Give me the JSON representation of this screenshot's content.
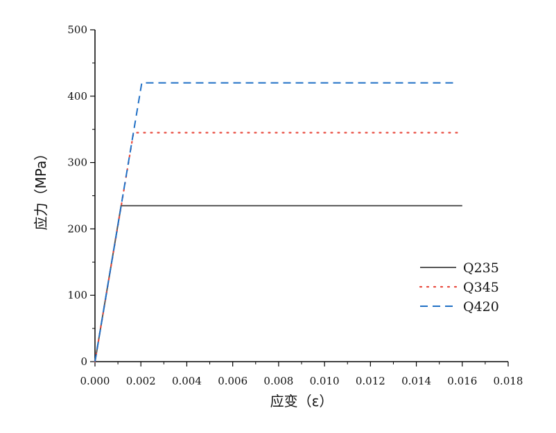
{
  "chart_data": {
    "type": "line",
    "title": "",
    "xlabel": "应变（ε）",
    "ylabel": "应力（MPa）",
    "xlim": [
      0,
      0.018
    ],
    "ylim": [
      0,
      500
    ],
    "x_ticks": [
      "0.000",
      "0.002",
      "0.004",
      "0.006",
      "0.008",
      "0.010",
      "0.012",
      "0.014",
      "0.016",
      "0.018"
    ],
    "y_ticks": [
      "0",
      "100",
      "200",
      "300",
      "400",
      "500"
    ],
    "grid": false,
    "legend_position": "right-middle",
    "series": [
      {
        "name": "Q235",
        "color": "#555555",
        "style": "solid",
        "points": [
          [
            0,
            0
          ],
          [
            0.00114,
            235
          ],
          [
            0.016,
            235
          ]
        ]
      },
      {
        "name": "Q345",
        "color": "#e8483c",
        "style": "dotted",
        "points": [
          [
            0,
            0
          ],
          [
            0.00168,
            345
          ],
          [
            0.016,
            345
          ]
        ]
      },
      {
        "name": "Q420",
        "color": "#1f6fc5",
        "style": "dashed",
        "points": [
          [
            0,
            0
          ],
          [
            0.00204,
            420
          ],
          [
            0.0157,
            420
          ]
        ]
      }
    ]
  }
}
